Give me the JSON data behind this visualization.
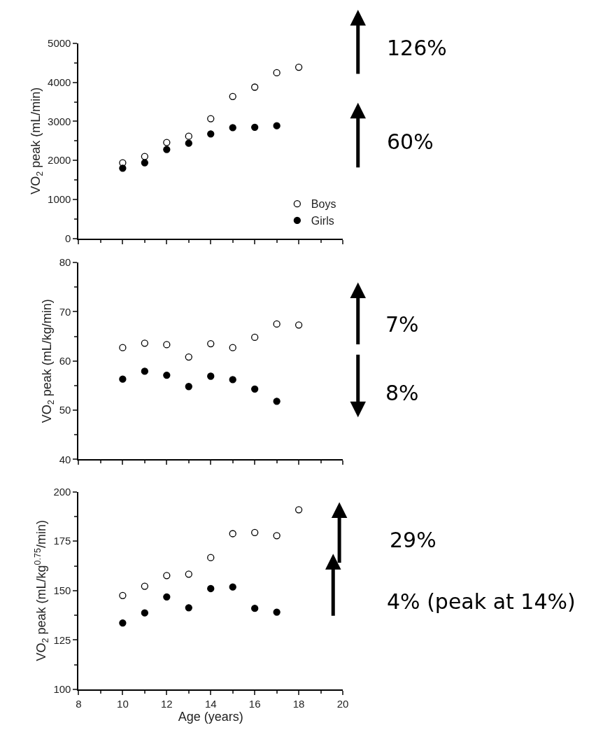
{
  "chart_data": [
    {
      "type": "scatter",
      "ylabel": "VO$_{2}$ peak (mL/min)",
      "x": [
        10,
        11,
        12,
        13,
        14,
        15,
        16,
        17,
        18
      ],
      "xlim": [
        8,
        20
      ],
      "xticks": [
        8,
        10,
        12,
        14,
        16,
        18,
        20
      ],
      "ylim": [
        0,
        5000
      ],
      "yticks": [
        0,
        1000,
        2000,
        3000,
        4000,
        5000
      ],
      "tick_labels": "y",
      "legend": "bottom right",
      "marker": "circle",
      "series": [
        {
          "name": "Boys",
          "color": "#ffffff",
          "values": [
            1940,
            2100,
            2460,
            2620,
            3070,
            3640,
            3880,
            4250,
            4390
          ]
        },
        {
          "name": "Girls",
          "color": "#000000",
          "values": [
            1800,
            1940,
            2280,
            2440,
            2680,
            2840,
            2850,
            2890,
            null
          ]
        }
      ],
      "annotations": [
        "126%",
        "60%"
      ]
    },
    {
      "type": "scatter",
      "ylabel": "VO$_{2}$ peak (mL/kg/min)",
      "x": [
        10,
        11,
        12,
        13,
        14,
        15,
        16,
        17,
        18
      ],
      "xlim": [
        8,
        20
      ],
      "xticks": [
        8,
        10,
        12,
        14,
        16,
        18,
        20
      ],
      "ylim": [
        40,
        80
      ],
      "yticks": [
        40,
        50,
        60,
        70,
        80
      ],
      "tick_labels": "y",
      "marker": "circle",
      "series": [
        {
          "color": "#ffffff",
          "values": [
            62.7,
            63.6,
            63.3,
            60.8,
            63.5,
            62.7,
            64.8,
            67.5,
            67.3
          ]
        },
        {
          "color": "#000000",
          "values": [
            56.3,
            57.9,
            57.1,
            54.8,
            56.9,
            56.2,
            54.3,
            51.8,
            null
          ]
        }
      ],
      "annotations": [
        "7%",
        "8%"
      ]
    },
    {
      "type": "scatter",
      "xlabel": "Age (years)",
      "ylabel": "VO$_{2}$ peak (mL/kg$^{0.75}$/min)",
      "x": [
        10,
        11,
        12,
        13,
        14,
        15,
        16,
        17,
        18
      ],
      "xlim": [
        8,
        20
      ],
      "xticks": [
        8,
        10,
        12,
        14,
        16,
        18,
        20
      ],
      "ylim": [
        100,
        200
      ],
      "yticks": [
        100,
        125,
        150,
        175,
        200
      ],
      "marker": "circle",
      "series": [
        {
          "color": "#ffffff",
          "values": [
            147.5,
            152.2,
            157.6,
            158.3,
            166.7,
            178.8,
            179.4,
            177.8,
            190.9
          ]
        },
        {
          "color": "#000000",
          "values": [
            133.6,
            138.7,
            146.8,
            141.3,
            151.0,
            151.8,
            141.0,
            139.1,
            null
          ]
        }
      ],
      "annotations": [
        "29%",
        "4% (peak at 14%)"
      ]
    }
  ]
}
